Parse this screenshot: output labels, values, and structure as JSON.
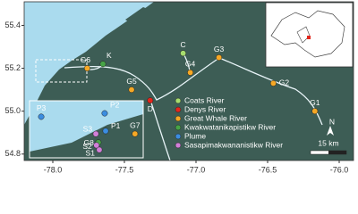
{
  "map": {
    "xlim": [
      -78.2,
      -75.9
    ],
    "ylim": [
      54.77,
      55.51
    ],
    "xticks": [
      {
        "value": -78,
        "label": "-78.0"
      },
      -77.5,
      {
        "value": -77,
        "label": "-77.0"
      },
      -76.5,
      {
        "value": -76,
        "label": "-76.0"
      }
    ],
    "yticks": [
      54.8,
      {
        "value": 55,
        "label": "55.0"
      },
      55.2,
      55.4
    ],
    "legend": [
      {
        "name": "Coats River",
        "color": "#a6dc6e"
      },
      {
        "name": "Denys River",
        "color": "#e3261c"
      },
      {
        "name": "Great Whale River",
        "color": "#f6a825"
      },
      {
        "name": "Kwakwatanikapistikw River",
        "color": "#47a447"
      },
      {
        "name": "Plume",
        "color": "#3b8de0"
      },
      {
        "name": "Sasapimakwananistikw River",
        "color": "#d27fd9"
      }
    ],
    "sites": [
      {
        "label": "C",
        "group": 0,
        "lon": -77.09,
        "lat": 55.27
      },
      {
        "label": "G3",
        "group": 2,
        "lon": -76.84,
        "lat": 55.25
      },
      {
        "label": "G4",
        "group": 2,
        "lon": -77.04,
        "lat": 55.18
      },
      {
        "label": "K",
        "group": 3,
        "lon": -77.65,
        "lat": 55.22
      },
      {
        "label": "G6",
        "group": 2,
        "lon": -77.76,
        "lat": 55.2
      },
      {
        "label": "G5",
        "group": 2,
        "lon": -77.45,
        "lat": 55.1
      },
      {
        "label": "D",
        "group": 1,
        "lon": -77.32,
        "lat": 55.05
      },
      {
        "label": "G2",
        "group": 2,
        "lon": -76.46,
        "lat": 55.13
      },
      {
        "label": "G1",
        "group": 2,
        "lon": -76.17,
        "lat": 55.0
      }
    ],
    "inset": {
      "xlim": [
        -78.12,
        -77.76
      ],
      "ylim": [
        55.14,
        55.24
      ],
      "sites": [
        {
          "label": "P3",
          "group": 4,
          "lon": -78.083,
          "lat": 55.212
        },
        {
          "label": "P2",
          "group": 4,
          "lon": -77.882,
          "lat": 55.218
        },
        {
          "label": "P1",
          "group": 4,
          "lon": -77.879,
          "lat": 55.187
        },
        {
          "label": "S3",
          "group": 5,
          "lon": -77.91,
          "lat": 55.182
        },
        {
          "label": "G8",
          "group": 3,
          "lon": -77.902,
          "lat": 55.167
        },
        {
          "label": "S2",
          "group": 5,
          "lon": -77.908,
          "lat": 55.162
        },
        {
          "label": "S1",
          "group": 5,
          "lon": -77.899,
          "lat": 55.154
        },
        {
          "label": "G7",
          "group": 2,
          "lon": -77.786,
          "lat": 55.182
        }
      ]
    },
    "north": "N",
    "scale": "15 km"
  }
}
